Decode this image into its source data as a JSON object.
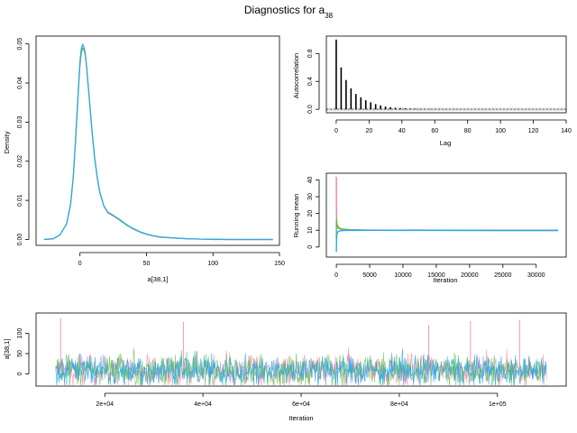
{
  "figure": {
    "title": "Diagnostics for a",
    "title_subscript": "38",
    "series_colors": [
      "#f27fa8",
      "#5cbd3f",
      "#2aa8ee"
    ]
  },
  "chart_data": [
    {
      "id": "density",
      "type": "line",
      "xlabel": "a[38,1]",
      "ylabel": "Density",
      "xlim": [
        -33,
        150
      ],
      "ylim": [
        -0.0015,
        0.052
      ],
      "xticks": [
        0,
        50,
        100,
        150
      ],
      "yticks": [
        0.0,
        0.01,
        0.02,
        0.03,
        0.04,
        0.05
      ],
      "ytick_labels": [
        "0.00",
        "0.01",
        "0.02",
        "0.03",
        "0.04",
        "0.05"
      ],
      "x": [
        -27,
        -20,
        -15,
        -10,
        -7,
        -5,
        -3,
        -1,
        0,
        1,
        2,
        3,
        4,
        5,
        7,
        9,
        11,
        13,
        15,
        18,
        21,
        25,
        30,
        35,
        40,
        45,
        50,
        55,
        60,
        70,
        80,
        90,
        100,
        110,
        120,
        130,
        145
      ],
      "series": [
        {
          "values": [
            0.0,
            0.0002,
            0.0012,
            0.004,
            0.009,
            0.016,
            0.027,
            0.039,
            0.0445,
            0.0475,
            0.0488,
            0.0485,
            0.047,
            0.044,
            0.036,
            0.028,
            0.021,
            0.016,
            0.012,
            0.0085,
            0.0068,
            0.006,
            0.005,
            0.0038,
            0.0028,
            0.002,
            0.0014,
            0.001,
            0.0007,
            0.0004,
            0.0002,
            0.0001,
            0.0001,
            0.0,
            0.0,
            0.0,
            0.0
          ]
        },
        {
          "values": [
            0.0,
            0.0002,
            0.0012,
            0.004,
            0.009,
            0.016,
            0.0272,
            0.0392,
            0.0447,
            0.0478,
            0.049,
            0.0486,
            0.0472,
            0.0441,
            0.0362,
            0.0281,
            0.0211,
            0.0159,
            0.0121,
            0.0086,
            0.0069,
            0.0061,
            0.0049,
            0.0037,
            0.0027,
            0.0019,
            0.0013,
            0.0009,
            0.0006,
            0.0004,
            0.0002,
            0.0001,
            0.0001,
            0.0,
            0.0,
            0.0,
            0.0
          ]
        },
        {
          "values": [
            0.0,
            0.0002,
            0.0012,
            0.004,
            0.0092,
            0.0162,
            0.0275,
            0.0398,
            0.0455,
            0.0488,
            0.0499,
            0.0492,
            0.0476,
            0.0443,
            0.0361,
            0.0279,
            0.0208,
            0.0157,
            0.0119,
            0.0085,
            0.007,
            0.0062,
            0.0051,
            0.0038,
            0.0028,
            0.002,
            0.0014,
            0.001,
            0.0006,
            0.0004,
            0.0002,
            0.0001,
            0.0,
            0.0,
            0.0,
            0.0,
            0.0
          ]
        }
      ]
    },
    {
      "id": "autocorrelation",
      "type": "bar",
      "xlabel": "Lag",
      "ylabel": "Autocorrelation",
      "xlim": [
        -6,
        140
      ],
      "ylim": [
        -0.05,
        1.05
      ],
      "xticks": [
        0,
        20,
        40,
        60,
        80,
        100,
        120,
        140
      ],
      "yticks": [
        0.0,
        0.4,
        0.8
      ],
      "ytick_labels": [
        "0.0",
        "0.4",
        "0.8"
      ],
      "lags": [
        0,
        3,
        6,
        9,
        12,
        15,
        18,
        21,
        24,
        27,
        30,
        33,
        36,
        39,
        42,
        45,
        48,
        51,
        54,
        57,
        60,
        63,
        66,
        69,
        72,
        75,
        78,
        81,
        84,
        87,
        90,
        93,
        96,
        99,
        102,
        105,
        108,
        111,
        114,
        117,
        120,
        123,
        126,
        129,
        132,
        135,
        138
      ],
      "values": [
        1.0,
        0.6,
        0.42,
        0.3,
        0.22,
        0.17,
        0.13,
        0.1,
        0.075,
        0.055,
        0.04,
        0.03,
        0.022,
        0.017,
        0.013,
        0.01,
        0.008,
        0.006,
        0.005,
        0.004,
        0.003,
        0.003,
        0.002,
        0.002,
        0.002,
        0.001,
        0.001,
        0.001,
        0.001,
        0.001,
        0.001,
        0.0,
        0.0,
        0.0,
        0.0,
        0.0,
        0.0,
        0.0,
        0.0,
        0.0,
        0.0,
        0.0,
        0.0,
        0.0,
        0.0,
        0.0,
        0.0
      ],
      "confidence_band": [
        -0.02,
        0.02
      ]
    },
    {
      "id": "running_mean",
      "type": "line",
      "xlabel": "Iteration",
      "ylabel": "Running mean",
      "xlim": [
        -1500,
        34500
      ],
      "ylim": [
        -6,
        44
      ],
      "xticks": [
        0,
        5000,
        10000,
        15000,
        20000,
        25000,
        30000
      ],
      "yticks": [
        0,
        10,
        20,
        30,
        40
      ],
      "x": [
        1,
        20,
        50,
        100,
        200,
        400,
        700,
        1000,
        1500,
        2000,
        3000,
        4000,
        5000,
        7000,
        9000,
        12000,
        15000,
        20000,
        25000,
        30000,
        33300
      ],
      "series": [
        {
          "values": [
            42.0,
            20.0,
            14.0,
            12.0,
            11.5,
            11.0,
            10.6,
            10.5,
            10.4,
            10.3,
            10.2,
            10.1,
            10.1,
            10.0,
            10.0,
            10.1,
            10.0,
            10.0,
            10.0,
            10.0,
            10.0
          ]
        },
        {
          "values": [
            5.0,
            17.0,
            15.5,
            13.5,
            12.5,
            11.5,
            10.9,
            10.7,
            10.5,
            10.3,
            10.2,
            10.1,
            10.0,
            10.0,
            9.9,
            9.9,
            9.9,
            9.8,
            9.8,
            9.8,
            9.8
          ]
        },
        {
          "values": [
            -3.0,
            2.0,
            6.0,
            8.0,
            9.0,
            9.5,
            9.7,
            9.8,
            9.9,
            9.9,
            9.9,
            10.0,
            10.0,
            10.0,
            10.0,
            10.0,
            10.0,
            10.0,
            9.9,
            9.9,
            9.9
          ]
        }
      ]
    },
    {
      "id": "trace",
      "type": "line",
      "xlabel": "Iteration",
      "ylabel": "a[38,1]",
      "xlim": [
        6000,
        114000
      ],
      "ylim": [
        -30,
        150
      ],
      "xticks": [
        20000,
        40000,
        60000,
        80000,
        100000
      ],
      "xtick_labels": [
        "2e+04",
        "4e+04",
        "6e+04",
        "8e+04",
        "1e+05"
      ],
      "yticks": [
        0,
        50,
        100
      ],
      "iteration_range": [
        10000,
        110000
      ],
      "center": 8,
      "spread": 65,
      "peaks": [
        {
          "x": 11000,
          "y": 138
        },
        {
          "x": 36000,
          "y": 128
        },
        {
          "x": 86000,
          "y": 120
        },
        {
          "x": 94500,
          "y": 130
        },
        {
          "x": 104500,
          "y": 133
        }
      ]
    }
  ]
}
